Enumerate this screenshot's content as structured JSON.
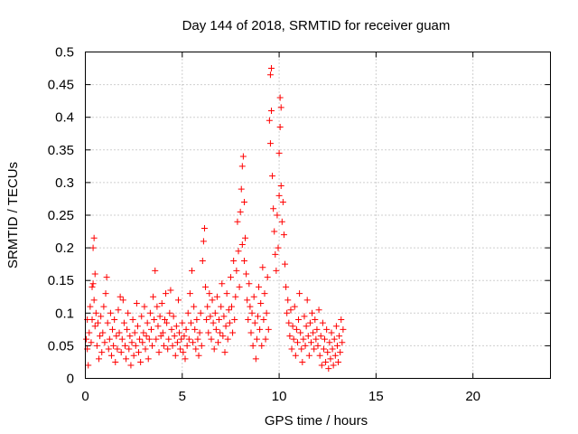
{
  "chart_data": {
    "type": "scatter",
    "title": "Day 144 of 2018, SRMTID for receiver guam",
    "xlabel": "GPS time / hours",
    "ylabel": "SRMTID / TECUs",
    "xlim": [
      0,
      24
    ],
    "ylim": [
      0,
      0.5
    ],
    "xticks": [
      0,
      5,
      10,
      15,
      20
    ],
    "xtick_labels": [
      "0",
      "5",
      "10",
      "15",
      "20"
    ],
    "yticks": [
      0,
      0.05,
      0.1,
      0.15,
      0.2,
      0.25,
      0.3,
      0.35,
      0.4,
      0.45,
      0.5
    ],
    "ytick_labels": [
      "0",
      "0.05",
      "0.1",
      "0.15",
      "0.2",
      "0.25",
      "0.3",
      "0.35",
      "0.4",
      "0.45",
      "0.5"
    ],
    "grid": true,
    "marker": "+",
    "color": "#ff0000",
    "series": [
      {
        "name": "SRMTID",
        "points": [
          [
            0.05,
            0.06
          ],
          [
            0.1,
            0.09
          ],
          [
            0.1,
            0.045
          ],
          [
            0.15,
            0.02
          ],
          [
            0.2,
            0.07
          ],
          [
            0.25,
            0.11
          ],
          [
            0.3,
            0.055
          ],
          [
            0.35,
            0.14
          ],
          [
            0.35,
            0.09
          ],
          [
            0.4,
            0.2
          ],
          [
            0.4,
            0.145
          ],
          [
            0.45,
            0.215
          ],
          [
            0.45,
            0.12
          ],
          [
            0.5,
            0.16
          ],
          [
            0.5,
            0.08
          ],
          [
            0.55,
            0.1
          ],
          [
            0.6,
            0.05
          ],
          [
            0.65,
            0.085
          ],
          [
            0.7,
            0.03
          ],
          [
            0.75,
            0.065
          ],
          [
            0.8,
            0.095
          ],
          [
            0.85,
            0.04
          ],
          [
            0.9,
            0.07
          ],
          [
            0.95,
            0.11
          ],
          [
            1.0,
            0.055
          ],
          [
            1.05,
            0.13
          ],
          [
            1.1,
            0.155
          ],
          [
            1.15,
            0.085
          ],
          [
            1.2,
            0.045
          ],
          [
            1.25,
            0.06
          ],
          [
            1.3,
            0.1
          ],
          [
            1.35,
            0.035
          ],
          [
            1.4,
            0.075
          ],
          [
            1.45,
            0.05
          ],
          [
            1.5,
            0.09
          ],
          [
            1.55,
            0.025
          ],
          [
            1.6,
            0.065
          ],
          [
            1.65,
            0.045
          ],
          [
            1.7,
            0.105
          ],
          [
            1.75,
            0.07
          ],
          [
            1.8,
            0.125
          ],
          [
            1.85,
            0.04
          ],
          [
            1.9,
            0.06
          ],
          [
            1.95,
            0.12
          ],
          [
            2.0,
            0.085
          ],
          [
            2.05,
            0.05
          ],
          [
            2.1,
            0.03
          ],
          [
            2.15,
            0.075
          ],
          [
            2.2,
            0.1
          ],
          [
            2.25,
            0.045
          ],
          [
            2.3,
            0.065
          ],
          [
            2.35,
            0.02
          ],
          [
            2.4,
            0.055
          ],
          [
            2.45,
            0.09
          ],
          [
            2.5,
            0.035
          ],
          [
            2.55,
            0.07
          ],
          [
            2.6,
            0.05
          ],
          [
            2.65,
            0.115
          ],
          [
            2.7,
            0.08
          ],
          [
            2.75,
            0.04
          ],
          [
            2.8,
            0.06
          ],
          [
            2.85,
            0.025
          ],
          [
            2.9,
            0.095
          ],
          [
            2.95,
            0.055
          ],
          [
            3.0,
            0.07
          ],
          [
            3.05,
            0.11
          ],
          [
            3.1,
            0.045
          ],
          [
            3.15,
            0.065
          ],
          [
            3.2,
            0.085
          ],
          [
            3.25,
            0.03
          ],
          [
            3.3,
            0.06
          ],
          [
            3.35,
            0.1
          ],
          [
            3.4,
            0.075
          ],
          [
            3.45,
            0.05
          ],
          [
            3.5,
            0.125
          ],
          [
            3.55,
            0.09
          ],
          [
            3.6,
            0.165
          ],
          [
            3.65,
            0.06
          ],
          [
            3.7,
            0.11
          ],
          [
            3.75,
            0.08
          ],
          [
            3.8,
            0.04
          ],
          [
            3.85,
            0.095
          ],
          [
            3.9,
            0.065
          ],
          [
            3.95,
            0.115
          ],
          [
            4.0,
            0.07
          ],
          [
            4.05,
            0.05
          ],
          [
            4.1,
            0.09
          ],
          [
            4.15,
            0.13
          ],
          [
            4.2,
            0.085
          ],
          [
            4.25,
            0.045
          ],
          [
            4.3,
            0.06
          ],
          [
            4.35,
            0.1
          ],
          [
            4.4,
            0.135
          ],
          [
            4.45,
            0.075
          ],
          [
            4.5,
            0.05
          ],
          [
            4.55,
            0.095
          ],
          [
            4.6,
            0.065
          ],
          [
            4.65,
            0.035
          ],
          [
            4.7,
            0.08
          ],
          [
            4.75,
            0.055
          ],
          [
            4.8,
            0.12
          ],
          [
            4.85,
            0.07
          ],
          [
            4.9,
            0.045
          ],
          [
            4.95,
            0.06
          ],
          [
            5.0,
            0.085
          ],
          [
            5.05,
            0.04
          ],
          [
            5.1,
            0.065
          ],
          [
            5.15,
            0.03
          ],
          [
            5.2,
            0.075
          ],
          [
            5.25,
            0.05
          ],
          [
            5.3,
            0.1
          ],
          [
            5.35,
            0.06
          ],
          [
            5.4,
            0.13
          ],
          [
            5.45,
            0.085
          ],
          [
            5.5,
            0.165
          ],
          [
            5.55,
            0.055
          ],
          [
            5.6,
            0.11
          ],
          [
            5.65,
            0.075
          ],
          [
            5.7,
            0.045
          ],
          [
            5.75,
            0.09
          ],
          [
            5.8,
            0.06
          ],
          [
            5.85,
            0.035
          ],
          [
            5.9,
            0.07
          ],
          [
            5.95,
            0.1
          ],
          [
            6.0,
            0.05
          ],
          [
            6.05,
            0.18
          ],
          [
            6.1,
            0.21
          ],
          [
            6.15,
            0.23
          ],
          [
            6.2,
            0.14
          ],
          [
            6.25,
            0.09
          ],
          [
            6.3,
            0.11
          ],
          [
            6.35,
            0.07
          ],
          [
            6.4,
            0.13
          ],
          [
            6.45,
            0.095
          ],
          [
            6.5,
            0.06
          ],
          [
            6.55,
            0.12
          ],
          [
            6.6,
            0.085
          ],
          [
            6.65,
            0.045
          ],
          [
            6.7,
            0.1
          ],
          [
            6.75,
            0.075
          ],
          [
            6.8,
            0.125
          ],
          [
            6.85,
            0.055
          ],
          [
            6.9,
            0.09
          ],
          [
            6.95,
            0.07
          ],
          [
            7.0,
            0.11
          ],
          [
            7.05,
            0.145
          ],
          [
            7.1,
            0.065
          ],
          [
            7.15,
            0.095
          ],
          [
            7.2,
            0.04
          ],
          [
            7.25,
            0.08
          ],
          [
            7.3,
            0.13
          ],
          [
            7.35,
            0.06
          ],
          [
            7.4,
            0.105
          ],
          [
            7.45,
            0.085
          ],
          [
            7.5,
            0.155
          ],
          [
            7.55,
            0.11
          ],
          [
            7.6,
            0.07
          ],
          [
            7.65,
            0.18
          ],
          [
            7.7,
            0.09
          ],
          [
            7.75,
            0.125
          ],
          [
            7.8,
            0.165
          ],
          [
            7.85,
            0.24
          ],
          [
            7.9,
            0.195
          ],
          [
            7.95,
            0.14
          ],
          [
            8.0,
            0.255
          ],
          [
            8.05,
            0.29
          ],
          [
            8.1,
            0.325
          ],
          [
            8.1,
            0.205
          ],
          [
            8.15,
            0.34
          ],
          [
            8.2,
            0.27
          ],
          [
            8.2,
            0.18
          ],
          [
            8.25,
            0.215
          ],
          [
            8.3,
            0.16
          ],
          [
            8.35,
            0.12
          ],
          [
            8.4,
            0.09
          ],
          [
            8.45,
            0.145
          ],
          [
            8.5,
            0.11
          ],
          [
            8.55,
            0.07
          ],
          [
            8.6,
            0.1
          ],
          [
            8.65,
            0.05
          ],
          [
            8.7,
            0.125
          ],
          [
            8.75,
            0.085
          ],
          [
            8.8,
            0.03
          ],
          [
            8.85,
            0.06
          ],
          [
            8.9,
            0.095
          ],
          [
            8.95,
            0.14
          ],
          [
            9.0,
            0.075
          ],
          [
            9.05,
            0.115
          ],
          [
            9.1,
            0.05
          ],
          [
            9.15,
            0.17
          ],
          [
            9.2,
            0.09
          ],
          [
            9.25,
            0.13
          ],
          [
            9.3,
            0.06
          ],
          [
            9.35,
            0.1
          ],
          [
            9.4,
            0.155
          ],
          [
            9.45,
            0.075
          ],
          [
            9.5,
            0.395
          ],
          [
            9.55,
            0.465
          ],
          [
            9.55,
            0.36
          ],
          [
            9.6,
            0.475
          ],
          [
            9.6,
            0.41
          ],
          [
            9.65,
            0.31
          ],
          [
            9.7,
            0.26
          ],
          [
            9.75,
            0.225
          ],
          [
            9.8,
            0.19
          ],
          [
            9.85,
            0.165
          ],
          [
            9.9,
            0.25
          ],
          [
            9.95,
            0.2
          ],
          [
            10.0,
            0.345
          ],
          [
            10.0,
            0.28
          ],
          [
            10.05,
            0.43
          ],
          [
            10.05,
            0.385
          ],
          [
            10.1,
            0.415
          ],
          [
            10.1,
            0.295
          ],
          [
            10.15,
            0.24
          ],
          [
            10.2,
            0.27
          ],
          [
            10.25,
            0.22
          ],
          [
            10.3,
            0.175
          ],
          [
            10.35,
            0.14
          ],
          [
            10.4,
            0.1
          ],
          [
            10.45,
            0.12
          ],
          [
            10.5,
            0.085
          ],
          [
            10.55,
            0.065
          ],
          [
            10.6,
            0.105
          ],
          [
            10.65,
            0.045
          ],
          [
            10.7,
            0.08
          ],
          [
            10.75,
            0.06
          ],
          [
            10.8,
            0.11
          ],
          [
            10.85,
            0.035
          ],
          [
            10.9,
            0.075
          ],
          [
            10.95,
            0.055
          ],
          [
            11.0,
            0.09
          ],
          [
            11.05,
            0.13
          ],
          [
            11.1,
            0.07
          ],
          [
            11.15,
            0.045
          ],
          [
            11.2,
            0.025
          ],
          [
            11.25,
            0.06
          ],
          [
            11.3,
            0.095
          ],
          [
            11.35,
            0.05
          ],
          [
            11.4,
            0.08
          ],
          [
            11.45,
            0.12
          ],
          [
            11.5,
            0.065
          ],
          [
            11.55,
            0.035
          ],
          [
            11.6,
            0.085
          ],
          [
            11.65,
            0.055
          ],
          [
            11.7,
            0.1
          ],
          [
            11.75,
            0.07
          ],
          [
            11.8,
            0.045
          ],
          [
            11.85,
            0.09
          ],
          [
            11.9,
            0.06
          ],
          [
            11.95,
            0.075
          ],
          [
            12.0,
            0.05
          ],
          [
            12.05,
            0.105
          ],
          [
            12.1,
            0.035
          ],
          [
            12.15,
            0.065
          ],
          [
            12.2,
            0.02
          ],
          [
            12.25,
            0.085
          ],
          [
            12.3,
            0.045
          ],
          [
            12.35,
            0.06
          ],
          [
            12.4,
            0.025
          ],
          [
            12.45,
            0.075
          ],
          [
            12.5,
            0.04
          ],
          [
            12.55,
            0.015
          ],
          [
            12.6,
            0.055
          ],
          [
            12.65,
            0.03
          ],
          [
            12.7,
            0.07
          ],
          [
            12.75,
            0.045
          ],
          [
            12.8,
            0.02
          ],
          [
            12.85,
            0.06
          ],
          [
            12.9,
            0.035
          ],
          [
            12.95,
            0.08
          ],
          [
            13.0,
            0.05
          ],
          [
            13.05,
            0.025
          ],
          [
            13.1,
            0.065
          ],
          [
            13.15,
            0.04
          ],
          [
            13.2,
            0.09
          ],
          [
            13.25,
            0.055
          ],
          [
            13.3,
            0.075
          ]
        ]
      }
    ]
  }
}
